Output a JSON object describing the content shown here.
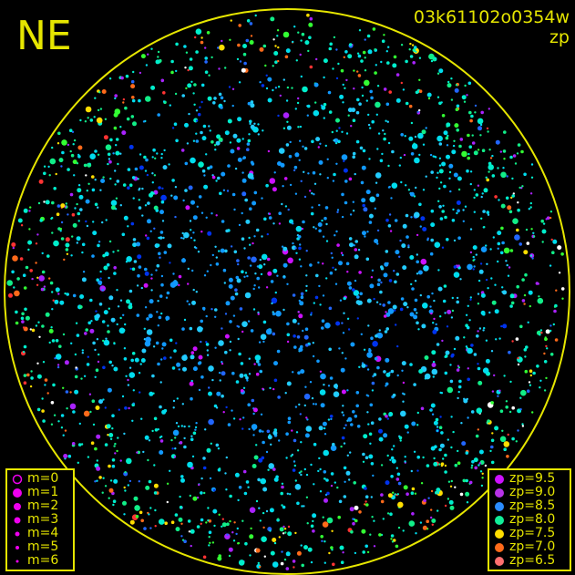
{
  "header": {
    "direction_label": "NE",
    "frame_id": "03k61102o0354w",
    "color_quantity": "zp"
  },
  "chart_data": {
    "type": "scatter",
    "title": "03k61102o0354w",
    "description_color": "zp",
    "projection": "all-sky fisheye",
    "horizon_circle_color": "#e6e600",
    "background": "#000000",
    "size_legend": [
      {
        "label": "m=0",
        "style": "open-circle"
      },
      {
        "label": "m=1"
      },
      {
        "label": "m=2"
      },
      {
        "label": "m=3"
      },
      {
        "label": "m=4"
      },
      {
        "label": "m=5"
      },
      {
        "label": "m=6"
      }
    ],
    "color_legend": [
      {
        "label": "zp=9.5",
        "zp": 9.5,
        "color": "#cc11ff"
      },
      {
        "label": "zp=9.0",
        "zp": 9.0,
        "color": "#b833e8"
      },
      {
        "label": "zp=8.5",
        "zp": 8.5,
        "color": "#2a8cff"
      },
      {
        "label": "zp=8.0",
        "zp": 8.0,
        "color": "#11ee99"
      },
      {
        "label": "zp=7.5",
        "zp": 7.5,
        "color": "#ffdd00"
      },
      {
        "label": "zp=7.0",
        "zp": 7.0,
        "color": "#ff6a1a"
      },
      {
        "label": "zp=6.5",
        "zp": 6.5,
        "color": "#ff6f6f"
      }
    ],
    "legend_placement": [
      "bottom-left",
      "bottom-right"
    ]
  }
}
